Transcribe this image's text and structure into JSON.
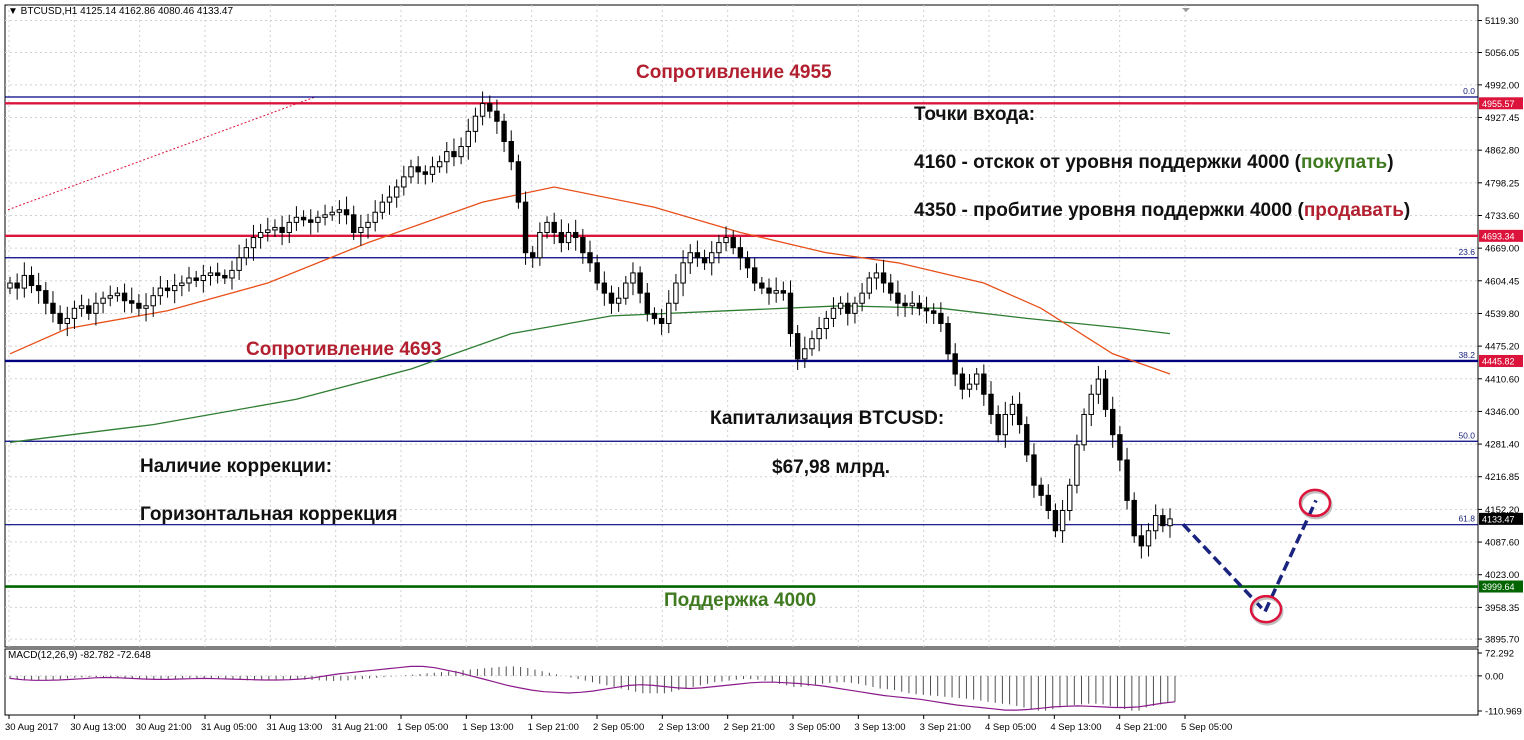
{
  "header": {
    "symbol_info": "▼ BTCUSD,H1  4125.14 4162.86 4080.46 4133.47"
  },
  "macd": {
    "label": "MACD(12,26,9) -82.782 -72.648",
    "ticks": [
      "72.292",
      "0.00",
      "-110.969"
    ]
  },
  "annotations": {
    "resistance_top": "Сопротивление 4955",
    "resistance_mid": "Сопротивление 4693",
    "support": "Поддержка 4000",
    "entry_title": "Точки входа:",
    "entry1_main": "4160 - отскок от уровня поддержки 4000 (",
    "entry1_action": "покупать",
    "entry1_end": ")",
    "entry2_main": "4350 - пробитие уровня поддержки 4000 (",
    "entry2_action": "продавать",
    "entry2_end": ")",
    "cap_title": "Капитализация BTCUSD:",
    "cap_value": "$67,98 млрд.",
    "corr_title": "Наличие коррекции:",
    "corr_value": "Горизонтальная коррекция"
  },
  "colors": {
    "red_level": "#dc143c",
    "navy_level": "#000080",
    "green_level": "#006400",
    "ma_fast": "#e8501a",
    "ma_slow": "#2e7d32",
    "macd_bar": "#505050",
    "signal": "#8b1a8b",
    "forecast": "#1a237e"
  },
  "chart_data": {
    "type": "candlestick",
    "symbol": "BTCUSD",
    "timeframe": "H1",
    "ylim": [
      3880,
      5150
    ],
    "yticks": [
      "5119.30",
      "5056.05",
      "4992.00",
      "4927.45",
      "4862.80",
      "4798.25",
      "4733.60",
      "4669.00",
      "4604.45",
      "4539.80",
      "4475.20",
      "4410.60",
      "4346.00",
      "4281.40",
      "4216.85",
      "4152.20",
      "4087.60",
      "4023.00",
      "3958.35",
      "3895.70"
    ],
    "xticks": [
      "30 Aug 2017",
      "30 Aug 13:00",
      "30 Aug 21:00",
      "31 Aug 05:00",
      "31 Aug 13:00",
      "31 Aug 21:00",
      "1 Sep 05:00",
      "1 Sep 13:00",
      "1 Sep 21:00",
      "2 Sep 05:00",
      "2 Sep 13:00",
      "2 Sep 21:00",
      "3 Sep 05:00",
      "3 Sep 13:00",
      "3 Sep 21:00",
      "4 Sep 05:00",
      "4 Sep 13:00",
      "4 Sep 21:00",
      "5 Sep 05:00"
    ],
    "levels": [
      {
        "price": 4955.57,
        "kind": "red",
        "tag": "4955.57"
      },
      {
        "price": 4693.34,
        "kind": "red",
        "tag": "4693.34"
      },
      {
        "price": 4445.82,
        "kind": "navy",
        "tag": "4445.82"
      },
      {
        "price": 3999.64,
        "kind": "green",
        "tag": "3999.64"
      },
      {
        "price": 4133.47,
        "kind": "price",
        "tag": "4133.47"
      }
    ],
    "fibo": [
      {
        "label": "0.0",
        "price": 4968
      },
      {
        "label": "23.6",
        "price": 4650
      },
      {
        "label": "38.2",
        "price": 4446
      },
      {
        "label": "50.0",
        "price": 4287
      },
      {
        "label": "61.8",
        "price": 4122
      }
    ],
    "closes": [
      4600,
      4590,
      4615,
      4595,
      4585,
      4560,
      4540,
      4520,
      4530,
      4550,
      4555,
      4540,
      4560,
      4570,
      4575,
      4580,
      4565,
      4560,
      4550,
      4555,
      4575,
      4590,
      4585,
      4595,
      4600,
      4610,
      4605,
      4615,
      4620,
      4615,
      4610,
      4625,
      4650,
      4670,
      4690,
      4700,
      4705,
      4710,
      4700,
      4720,
      4730,
      4725,
      4720,
      4730,
      4735,
      4740,
      4745,
      4735,
      4700,
      4710,
      4720,
      4740,
      4760,
      4770,
      4790,
      4810,
      4830,
      4820,
      4815,
      4830,
      4840,
      4860,
      4850,
      4870,
      4900,
      4930,
      4955,
      4940,
      4920,
      4880,
      4840,
      4760,
      4660,
      4650,
      4700,
      4720,
      4700,
      4680,
      4700,
      4690,
      4660,
      4640,
      4600,
      4580,
      4560,
      4570,
      4600,
      4620,
      4580,
      4540,
      4530,
      4520,
      4560,
      4600,
      4640,
      4660,
      4650,
      4640,
      4660,
      4680,
      4690,
      4670,
      4650,
      4630,
      4600,
      4590,
      4580,
      4585,
      4580,
      4500,
      4450,
      4470,
      4490,
      4510,
      4530,
      4550,
      4560,
      4540,
      4560,
      4580,
      4610,
      4620,
      4600,
      4580,
      4560,
      4555,
      4560,
      4550,
      4545,
      4540,
      4520,
      4460,
      4420,
      4390,
      4400,
      4420,
      4380,
      4340,
      4300,
      4340,
      4360,
      4320,
      4260,
      4200,
      4180,
      4150,
      4110,
      4150,
      4200,
      4280,
      4340,
      4380,
      4410,
      4350,
      4300,
      4250,
      4170,
      4100,
      4080,
      4110,
      4140,
      4120,
      4133.47
    ],
    "ma_fast_points": [
      [
        0,
        4460
      ],
      [
        8,
        4510
      ],
      [
        22,
        4545
      ],
      [
        36,
        4600
      ],
      [
        50,
        4680
      ],
      [
        66,
        4760
      ],
      [
        76,
        4790
      ],
      [
        90,
        4750
      ],
      [
        102,
        4700
      ],
      [
        114,
        4660
      ],
      [
        124,
        4640
      ],
      [
        136,
        4600
      ],
      [
        144,
        4550
      ],
      [
        154,
        4460
      ],
      [
        162,
        4420
      ]
    ],
    "ma_slow_points": [
      [
        0,
        4285
      ],
      [
        20,
        4320
      ],
      [
        40,
        4370
      ],
      [
        56,
        4430
      ],
      [
        70,
        4500
      ],
      [
        84,
        4535
      ],
      [
        100,
        4545
      ],
      [
        116,
        4555
      ],
      [
        130,
        4550
      ],
      [
        142,
        4530
      ],
      [
        156,
        4510
      ],
      [
        162,
        4500
      ]
    ],
    "forecast_points": [
      [
        4133,
        4123
      ],
      [
        4124,
        3950
      ],
      [
        4126,
        4170
      ]
    ],
    "macd_values": [
      -10,
      -12,
      -14,
      -15,
      -14,
      -13,
      -12,
      -10,
      -8,
      -6,
      -5,
      -4,
      -4,
      -5,
      -6,
      -8,
      -9,
      -10,
      -11,
      -12,
      -12,
      -11,
      -10,
      -9,
      -8,
      -7,
      -7,
      -8,
      -9,
      -10,
      -11,
      -12,
      -13,
      -14,
      -14,
      -13,
      -12,
      -11,
      -10,
      -10,
      -11,
      -12,
      -13,
      -14,
      -15,
      -16,
      -15,
      -14,
      -12,
      -10,
      -8,
      -6,
      -4,
      -2,
      0,
      2,
      4,
      6,
      8,
      10,
      12,
      14,
      16,
      18,
      20,
      22,
      24,
      26,
      28,
      30,
      30,
      28,
      25,
      20,
      15,
      10,
      5,
      0,
      -5,
      -10,
      -15,
      -20,
      -25,
      -30,
      -35,
      -40,
      -45,
      -50,
      -55,
      -55,
      -55,
      -55,
      -50,
      -45,
      -40,
      -35,
      -30,
      -25,
      -20,
      -18,
      -15,
      -12,
      -10,
      -10,
      -12,
      -15,
      -20,
      -25,
      -30,
      -35,
      -35,
      -32,
      -28,
      -25,
      -22,
      -20,
      -20,
      -22,
      -25,
      -30,
      -35,
      -40,
      -42,
      -45,
      -50,
      -55,
      -58,
      -60,
      -62,
      -64,
      -66,
      -68,
      -70,
      -72,
      -75,
      -78,
      -82,
      -85,
      -88,
      -90,
      -95,
      -100,
      -105,
      -110,
      -110,
      -105,
      -100,
      -95,
      -92,
      -90,
      -88,
      -88,
      -90,
      -95,
      -100,
      -105,
      -110,
      -110,
      -100,
      -95,
      -90,
      -85,
      -82
    ],
    "signal_values": [
      -8,
      -12,
      -14,
      -14,
      -13,
      -11,
      -9,
      -6,
      -5,
      -6,
      -8,
      -10,
      -11,
      -11,
      -10,
      -9,
      -8,
      -9,
      -10,
      -11,
      -12,
      -13,
      -13,
      -12,
      -10,
      -6,
      0,
      6,
      10,
      14,
      18,
      22,
      26,
      30,
      30,
      26,
      18,
      10,
      0,
      -10,
      -20,
      -30,
      -38,
      -45,
      -50,
      -52,
      -54,
      -52,
      -48,
      -42,
      -36,
      -30,
      -28,
      -30,
      -34,
      -38,
      -40,
      -38,
      -34,
      -30,
      -26,
      -22,
      -20,
      -20,
      -22,
      -24,
      -28,
      -32,
      -38,
      -44,
      -50,
      -56,
      -62,
      -66,
      -70,
      -74,
      -80,
      -86,
      -92,
      -96,
      -100,
      -104,
      -108,
      -108,
      -106,
      -102,
      -98,
      -96,
      -95,
      -96,
      -98,
      -100,
      -100,
      -98,
      -92,
      -86,
      -82
    ]
  }
}
